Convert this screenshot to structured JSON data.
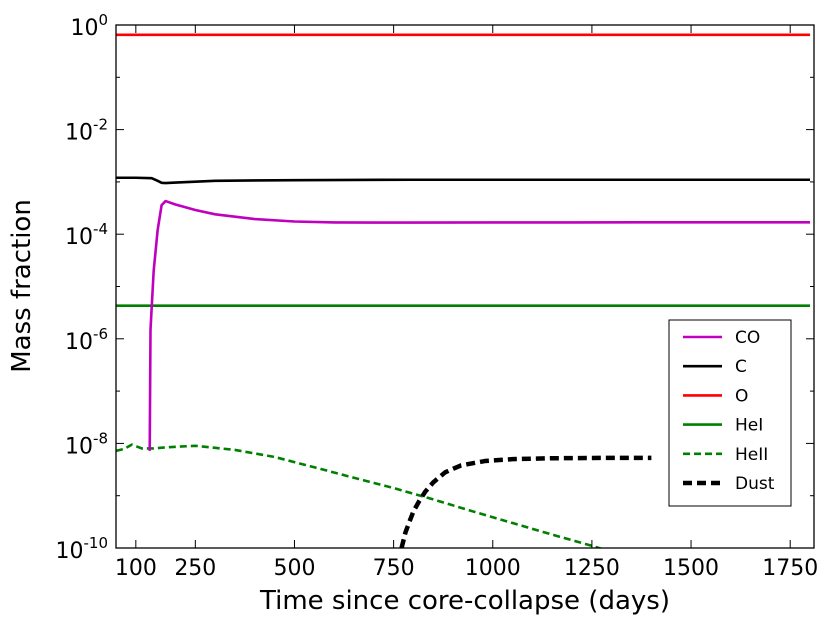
{
  "chart_data": {
    "type": "line",
    "title": "",
    "xlabel": "Time since core-collapse (days)",
    "ylabel": "Mass fraction",
    "xlim": [
      50,
      1810
    ],
    "ylim_log10": [
      -10,
      0
    ],
    "yscale": "log",
    "x_ticks": [
      {
        "value": 100,
        "label": "100"
      },
      {
        "value": 250,
        "label": "250"
      },
      {
        "value": 500,
        "label": "500"
      },
      {
        "value": 750,
        "label": "750"
      },
      {
        "value": 1000,
        "label": "1000"
      },
      {
        "value": 1250,
        "label": "1250"
      },
      {
        "value": 1500,
        "label": "1500"
      },
      {
        "value": 1750,
        "label": "1750"
      }
    ],
    "y_ticks": [
      {
        "exp": 0,
        "base": "10",
        "sup": "0"
      },
      {
        "exp": -2,
        "base": "10",
        "sup": "-2"
      },
      {
        "exp": -4,
        "base": "10",
        "sup": "-4"
      },
      {
        "exp": -6,
        "base": "10",
        "sup": "-6"
      },
      {
        "exp": -8,
        "base": "10",
        "sup": "-8"
      },
      {
        "exp": -10,
        "base": "10",
        "sup": "-10"
      }
    ],
    "grid": false,
    "legend_position": "lower-right",
    "series": [
      {
        "name": "CO",
        "color": "#bf00bf",
        "dash": "solid",
        "x": [
          135,
          137,
          145,
          155,
          165,
          175,
          200,
          250,
          300,
          400,
          500,
          600,
          700,
          800,
          1000,
          1200,
          1400,
          1600,
          1800
        ],
        "y": [
          7.2e-09,
          1.5e-06,
          2e-05,
          0.00012,
          0.00036,
          0.00043,
          0.00037,
          0.00029,
          0.00024,
          0.000195,
          0.000175,
          0.000168,
          0.000167,
          0.000167,
          0.000168,
          0.000168,
          0.000169,
          0.000169,
          0.000169
        ]
      },
      {
        "name": "C",
        "color": "#000000",
        "dash": "solid",
        "x": [
          50,
          100,
          140,
          155,
          165,
          175,
          200,
          300,
          500,
          800,
          1200,
          1800
        ],
        "y": [
          0.0012,
          0.0012,
          0.00118,
          0.00105,
          0.00096,
          0.00095,
          0.00097,
          0.00105,
          0.00108,
          0.0011,
          0.0011,
          0.0011
        ]
      },
      {
        "name": "O",
        "color": "#ff0000",
        "dash": "solid",
        "x": [
          50,
          1800
        ],
        "y": [
          0.65,
          0.65
        ]
      },
      {
        "name": "HeI",
        "color": "#008000",
        "dash": "solid",
        "x": [
          50,
          1800
        ],
        "y": [
          4.3e-06,
          4.3e-06
        ]
      },
      {
        "name": "HeII",
        "color": "#008000",
        "dash": "dashed",
        "x": [
          50,
          70,
          90,
          115,
          135,
          145,
          175,
          250,
          350,
          450,
          550,
          650,
          750,
          850,
          950,
          1050,
          1150,
          1250,
          1350,
          1400
        ],
        "y": [
          7.2e-09,
          7.8e-09,
          9.5e-09,
          8e-09,
          8e-09,
          8e-09,
          8.4e-09,
          9e-09,
          7.5e-09,
          5.5e-09,
          3.5e-09,
          2.2e-09,
          1.4e-09,
          8.5e-10,
          5e-10,
          3e-10,
          1.8e-10,
          1.1e-10,
          6.5e-11,
          5e-11
        ]
      },
      {
        "name": "Dust",
        "color": "#000000",
        "dash": "thick-dashed",
        "x": [
          770,
          780,
          790,
          800,
          815,
          830,
          850,
          880,
          920,
          980,
          1050,
          1150,
          1300,
          1400
        ],
        "y": [
          1e-10,
          2e-10,
          3.2e-10,
          5e-10,
          8e-10,
          1.2e-09,
          1.8e-09,
          2.8e-09,
          3.8e-09,
          4.6e-09,
          5e-09,
          5.2e-09,
          5.3e-09,
          5.3e-09
        ]
      }
    ]
  }
}
